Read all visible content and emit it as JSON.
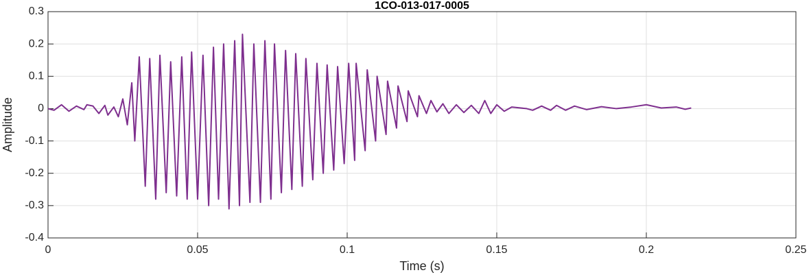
{
  "chart_data": {
    "type": "line",
    "title": "1CO-013-017-0005",
    "xlabel": "Time (s)",
    "ylabel": "Amplitude",
    "color": "#7e2f8e",
    "grid": true,
    "xlim": [
      0,
      0.25
    ],
    "xticks": [
      0,
      0.05,
      0.1,
      0.15,
      0.2,
      0.25
    ],
    "ylim": [
      -0.4,
      0.3
    ],
    "yticks": [
      -0.4,
      -0.3,
      -0.2,
      -0.1,
      0,
      0.1,
      0.2,
      0.3
    ],
    "x": [
      0,
      0.002,
      0.0045,
      0.007,
      0.0095,
      0.012,
      0.013,
      0.015,
      0.017,
      0.019,
      0.02,
      0.022,
      0.0235,
      0.025,
      0.0265,
      0.028,
      0.029,
      0.0305,
      0.0325,
      0.034,
      0.036,
      0.0374,
      0.0395,
      0.041,
      0.043,
      0.0447,
      0.0465,
      0.048,
      0.05,
      0.0518,
      0.0537,
      0.0553,
      0.057,
      0.0587,
      0.0605,
      0.0624,
      0.064,
      0.065,
      0.0675,
      0.0688,
      0.071,
      0.0725,
      0.0745,
      0.0757,
      0.078,
      0.0794,
      0.0815,
      0.0828,
      0.085,
      0.0862,
      0.0885,
      0.0899,
      0.092,
      0.0933,
      0.0955,
      0.0968,
      0.099,
      0.1005,
      0.1025,
      0.103,
      0.106,
      0.1067,
      0.1095,
      0.11,
      0.113,
      0.1135,
      0.1165,
      0.117,
      0.12,
      0.1204,
      0.1235,
      0.124,
      0.1265,
      0.128,
      0.13,
      0.132,
      0.134,
      0.1365,
      0.139,
      0.1415,
      0.144,
      0.146,
      0.148,
      0.15,
      0.1525,
      0.155,
      0.16,
      0.162,
      0.165,
      0.168,
      0.17,
      0.173,
      0.176,
      0.18,
      0.185,
      0.19,
      0.195,
      0.2,
      0.205,
      0.21,
      0.213,
      0.215
    ],
    "values": [
      0,
      -0.005,
      0.012,
      -0.008,
      0.008,
      -0.003,
      0.012,
      0.008,
      -0.015,
      0.01,
      -0.02,
      0.005,
      -0.025,
      0.03,
      -0.05,
      0.08,
      -0.1,
      0.16,
      -0.24,
      0.155,
      -0.28,
      0.165,
      -0.26,
      0.145,
      -0.27,
      0.16,
      -0.28,
      0.175,
      -0.28,
      0.165,
      -0.3,
      0.19,
      -0.28,
      0.2,
      -0.31,
      0.21,
      -0.3,
      0.23,
      -0.29,
      0.2,
      -0.29,
      0.21,
      -0.28,
      0.2,
      -0.26,
      0.18,
      -0.25,
      0.17,
      -0.24,
      0.155,
      -0.22,
      0.14,
      -0.2,
      0.135,
      -0.19,
      0.13,
      -0.17,
      0.14,
      -0.16,
      0.14,
      -0.13,
      0.12,
      -0.1,
      0.1,
      -0.08,
      0.085,
      -0.06,
      0.07,
      -0.04,
      0.055,
      -0.025,
      0.04,
      -0.015,
      0.025,
      -0.01,
      0.015,
      -0.015,
      0.012,
      -0.012,
      0.01,
      -0.015,
      0.025,
      -0.015,
      0.012,
      -0.008,
      0.005,
      0,
      -0.005,
      0.008,
      -0.005,
      0.01,
      -0.005,
      0.008,
      -0.003,
      0.006,
      0,
      0.005,
      0.012,
      0.002,
      0.005,
      -0.002,
      0.002
    ]
  }
}
